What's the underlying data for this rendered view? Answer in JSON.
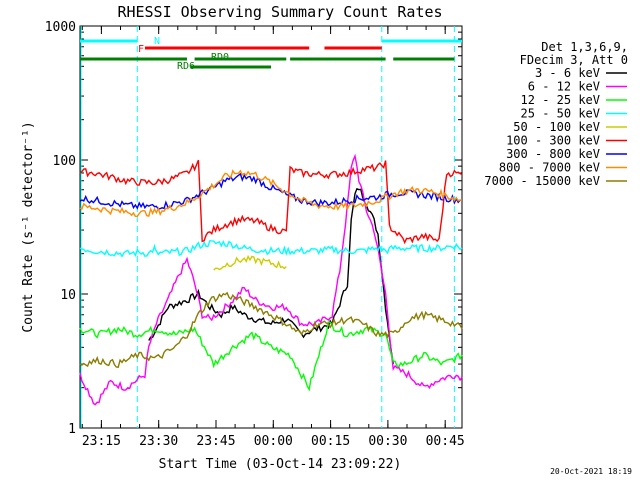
{
  "chart_data": {
    "type": "line",
    "title": "RHESSI Observing Summary Count Rates",
    "xlabel": "Start Time (03-Oct-14 23:09:22)",
    "ylabel": "Count Rate (s⁻¹ detector⁻¹)",
    "y_scale": "log",
    "ylim": [
      1,
      1000
    ],
    "xlim_minutes": [
      0,
      100
    ],
    "x_tick_labels": [
      "23:15",
      "23:30",
      "23:45",
      "00:00",
      "00:15",
      "00:30",
      "00:45"
    ],
    "y_tick_labels": [
      "1",
      "10",
      "100",
      "1000"
    ],
    "footer": "20-Oct-2021 18:19",
    "legend": {
      "header": [
        "Det 1,3,6,9,",
        "FDecim 3, Att 0"
      ],
      "placement": "right"
    },
    "series": [
      {
        "name": "3 - 6 keV",
        "color": "#000000",
        "points": [
          [
            18,
            4.5
          ],
          [
            20,
            5.5
          ],
          [
            23,
            8
          ],
          [
            28,
            9
          ],
          [
            31,
            10
          ],
          [
            34,
            8
          ],
          [
            37,
            7
          ],
          [
            40,
            8
          ],
          [
            43,
            7
          ],
          [
            46,
            6.5
          ],
          [
            50,
            6
          ],
          [
            54,
            6.5
          ],
          [
            58,
            5
          ],
          [
            62,
            5.5
          ],
          [
            66,
            6
          ],
          [
            70,
            12
          ],
          [
            71,
            35
          ],
          [
            72,
            55
          ],
          [
            73,
            62
          ],
          [
            75,
            48
          ],
          [
            77,
            35
          ],
          [
            78,
            28
          ],
          [
            80,
            8
          ],
          [
            82,
            3
          ]
        ]
      },
      {
        "name": "6 - 12 keV",
        "color": "#ff00ff",
        "points": [
          [
            0,
            2.5
          ],
          [
            4,
            1.5
          ],
          [
            8,
            2.2
          ],
          [
            12,
            2
          ],
          [
            17,
            2.5
          ],
          [
            18,
            4
          ],
          [
            20,
            6
          ],
          [
            23,
            9
          ],
          [
            26,
            14
          ],
          [
            28,
            18
          ],
          [
            30,
            12
          ],
          [
            32,
            7
          ],
          [
            34,
            6.5
          ],
          [
            37,
            7.5
          ],
          [
            40,
            9
          ],
          [
            43,
            11
          ],
          [
            46,
            9
          ],
          [
            50,
            8
          ],
          [
            54,
            8
          ],
          [
            58,
            6
          ],
          [
            62,
            6
          ],
          [
            66,
            7
          ],
          [
            68,
            15
          ],
          [
            70,
            45
          ],
          [
            71,
            85
          ],
          [
            72,
            110
          ],
          [
            73,
            72
          ],
          [
            75,
            42
          ],
          [
            77,
            30
          ],
          [
            78,
            21
          ],
          [
            80,
            10
          ],
          [
            82,
            2.8
          ],
          [
            86,
            2.5
          ],
          [
            90,
            2
          ],
          [
            94,
            2.3
          ],
          [
            98,
            2.5
          ],
          [
            100,
            2.4
          ]
        ]
      },
      {
        "name": "12 - 25 keV",
        "color": "#00ff00",
        "points": [
          [
            0,
            5.5
          ],
          [
            5,
            5
          ],
          [
            10,
            5.5
          ],
          [
            15,
            5
          ],
          [
            20,
            5.5
          ],
          [
            25,
            5
          ],
          [
            30,
            5.5
          ],
          [
            35,
            3
          ],
          [
            40,
            4
          ],
          [
            45,
            5
          ],
          [
            50,
            4
          ],
          [
            55,
            3.5
          ],
          [
            60,
            2
          ],
          [
            65,
            6
          ],
          [
            70,
            5
          ],
          [
            75,
            5.5
          ],
          [
            80,
            5
          ],
          [
            82,
            3
          ],
          [
            85,
            3
          ],
          [
            90,
            3.5
          ],
          [
            95,
            3
          ],
          [
            100,
            3.5
          ]
        ]
      },
      {
        "name": "25 - 50 keV",
        "color": "#00ffff",
        "points": [
          [
            0,
            22
          ],
          [
            4,
            21
          ],
          [
            8,
            20.5
          ],
          [
            12,
            20
          ],
          [
            16,
            20.5
          ],
          [
            18,
            20
          ],
          [
            19.5,
            22
          ],
          [
            20,
            20
          ],
          [
            24,
            20.5
          ],
          [
            28,
            21
          ],
          [
            31,
            23
          ],
          [
            34,
            24
          ],
          [
            37,
            24
          ],
          [
            40,
            23.5
          ],
          [
            43,
            22
          ],
          [
            46,
            21.5
          ],
          [
            50,
            21
          ],
          [
            54,
            21
          ],
          [
            58,
            21
          ],
          [
            62,
            21
          ],
          [
            66,
            21.5
          ],
          [
            70,
            21
          ],
          [
            74,
            21
          ],
          [
            78,
            22
          ],
          [
            80,
            21
          ],
          [
            82,
            22
          ],
          [
            86,
            22
          ],
          [
            90,
            22
          ],
          [
            94,
            22
          ],
          [
            98,
            23
          ],
          [
            100,
            22
          ]
        ]
      },
      {
        "name": "50 - 100 keV",
        "color": "#cccc00",
        "points": [
          [
            35,
            15
          ],
          [
            38,
            16.5
          ],
          [
            42,
            18
          ],
          [
            46,
            18
          ],
          [
            50,
            17
          ],
          [
            54,
            16
          ]
        ]
      },
      {
        "name": "100 - 300 keV",
        "color": "#ff0000",
        "points": [
          [
            0,
            82
          ],
          [
            4,
            80
          ],
          [
            8,
            75
          ],
          [
            12,
            70
          ],
          [
            16,
            68
          ],
          [
            20,
            68
          ],
          [
            24,
            72
          ],
          [
            28,
            80
          ],
          [
            31,
            95
          ],
          [
            32,
            26
          ],
          [
            35,
            30
          ],
          [
            38,
            33
          ],
          [
            42,
            36
          ],
          [
            46,
            35
          ],
          [
            50,
            31
          ],
          [
            54,
            29
          ],
          [
            55,
            85
          ],
          [
            58,
            80
          ],
          [
            62,
            78
          ],
          [
            66,
            78
          ],
          [
            70,
            80
          ],
          [
            74,
            85
          ],
          [
            78,
            88
          ],
          [
            80,
            95
          ],
          [
            81,
            32
          ],
          [
            85,
            25
          ],
          [
            90,
            27
          ],
          [
            94,
            25
          ],
          [
            96,
            80
          ],
          [
            98,
            80
          ],
          [
            100,
            78
          ]
        ]
      },
      {
        "name": "300 - 800 keV",
        "color": "#0000ff",
        "points": [
          [
            0,
            52
          ],
          [
            4,
            50
          ],
          [
            8,
            48
          ],
          [
            12,
            46
          ],
          [
            16,
            45
          ],
          [
            20,
            45
          ],
          [
            24,
            47
          ],
          [
            28,
            50
          ],
          [
            31,
            55
          ],
          [
            35,
            62
          ],
          [
            38,
            70
          ],
          [
            42,
            75
          ],
          [
            46,
            72
          ],
          [
            50,
            62
          ],
          [
            54,
            55
          ],
          [
            58,
            50
          ],
          [
            62,
            48
          ],
          [
            66,
            48
          ],
          [
            70,
            50
          ],
          [
            74,
            52
          ],
          [
            78,
            53
          ],
          [
            80,
            55
          ],
          [
            84,
            57
          ],
          [
            88,
            56
          ],
          [
            92,
            54
          ],
          [
            96,
            52
          ],
          [
            100,
            50
          ]
        ]
      },
      {
        "name": "800 - 7000 keV",
        "color": "#ff8c00",
        "points": [
          [
            0,
            45
          ],
          [
            4,
            44
          ],
          [
            8,
            42
          ],
          [
            12,
            41
          ],
          [
            16,
            40
          ],
          [
            20,
            41
          ],
          [
            24,
            44
          ],
          [
            28,
            48
          ],
          [
            31,
            54
          ],
          [
            35,
            65
          ],
          [
            38,
            75
          ],
          [
            42,
            82
          ],
          [
            46,
            78
          ],
          [
            50,
            68
          ],
          [
            54,
            58
          ],
          [
            58,
            50
          ],
          [
            62,
            46
          ],
          [
            66,
            45
          ],
          [
            70,
            45
          ],
          [
            74,
            47
          ],
          [
            78,
            50
          ],
          [
            80,
            53
          ],
          [
            84,
            58
          ],
          [
            88,
            60
          ],
          [
            92,
            58
          ],
          [
            96,
            54
          ],
          [
            100,
            50
          ]
        ]
      },
      {
        "name": "7000 - 15000 keV",
        "color": "#8b7d00",
        "points": [
          [
            0,
            3
          ],
          [
            5,
            3.2
          ],
          [
            10,
            3
          ],
          [
            15,
            3.5
          ],
          [
            20,
            3.3
          ],
          [
            25,
            4
          ],
          [
            28,
            5
          ],
          [
            31,
            7
          ],
          [
            34,
            9
          ],
          [
            38,
            10
          ],
          [
            42,
            9
          ],
          [
            46,
            8
          ],
          [
            50,
            7
          ],
          [
            54,
            6
          ],
          [
            58,
            5
          ],
          [
            62,
            6
          ],
          [
            66,
            6
          ],
          [
            70,
            6.5
          ],
          [
            74,
            6
          ],
          [
            78,
            5
          ],
          [
            80,
            5
          ],
          [
            82,
            5
          ],
          [
            86,
            6.5
          ],
          [
            90,
            7
          ],
          [
            94,
            6.5
          ],
          [
            98,
            6
          ],
          [
            100,
            5.5
          ]
        ]
      }
    ],
    "state_bars": [
      {
        "label": "N",
        "color": "#00ffff",
        "segments": [
          [
            0,
            15
          ],
          [
            79,
            100
          ]
        ]
      },
      {
        "label": "F",
        "color": "#ff0000",
        "segments": [
          [
            17,
            60
          ],
          [
            64,
            79
          ]
        ]
      },
      {
        "label": "RD0",
        "color": "#008000",
        "segments": [
          [
            0,
            28
          ],
          [
            30,
            54
          ],
          [
            55,
            80
          ],
          [
            82,
            98
          ]
        ]
      },
      {
        "label": "RD6",
        "color": "#008000",
        "segments": [
          [
            29,
            50
          ]
        ]
      }
    ],
    "vertical_markers": {
      "color": "#00ffff",
      "x": [
        15,
        79,
        98
      ]
    }
  }
}
